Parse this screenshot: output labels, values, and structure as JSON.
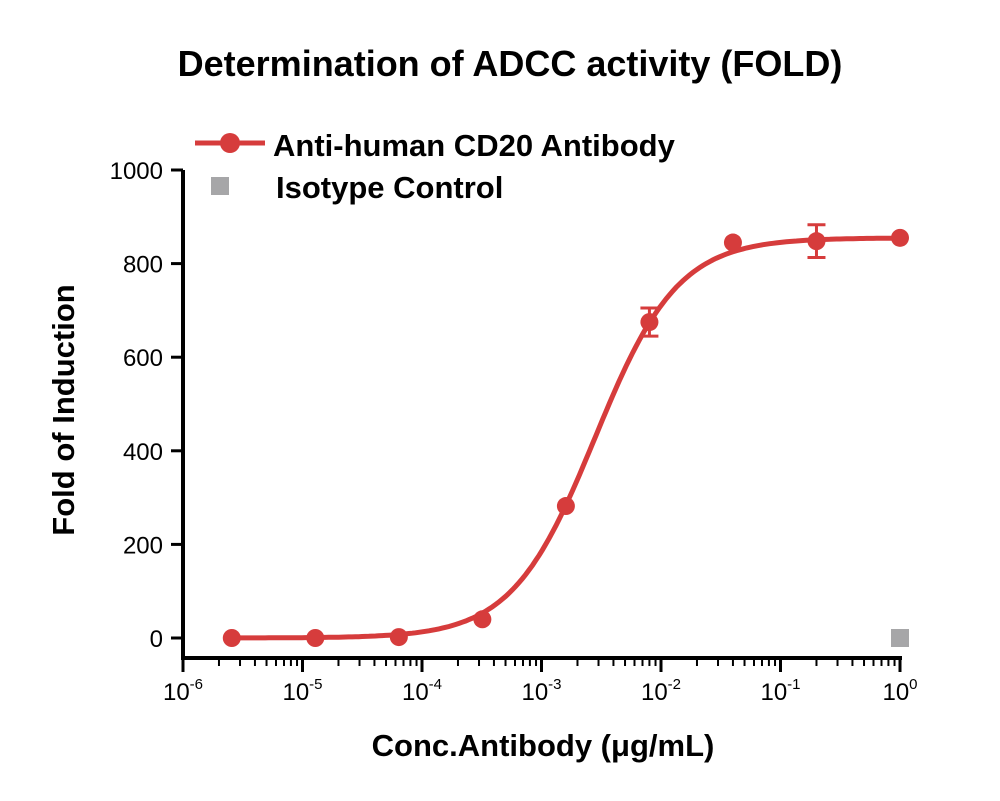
{
  "chart_data": {
    "type": "scatter",
    "title": "Determination of ADCC activity (FOLD)",
    "xlabel": "Conc.Antibody (μg/mL)",
    "ylabel": "Fold of Induction",
    "x_scale": "log",
    "xlim": [
      1e-06,
      1
    ],
    "ylim": [
      0,
      1000
    ],
    "y_ticks": [
      0,
      200,
      400,
      600,
      800,
      1000
    ],
    "x_tick_labels": [
      {
        "base": "10",
        "exp": "-6"
      },
      {
        "base": "10",
        "exp": "-5"
      },
      {
        "base": "10",
        "exp": "-4"
      },
      {
        "base": "10",
        "exp": "-3"
      },
      {
        "base": "10",
        "exp": "-2"
      },
      {
        "base": "10",
        "exp": "-1"
      },
      {
        "base": "10",
        "exp": "0"
      }
    ],
    "grid": false,
    "legend_position": "top-left",
    "series": [
      {
        "name": "Anti-human CD20 Antibody",
        "color": "#d63c3c",
        "marker": "circle",
        "fit": "sigmoidal-4pl",
        "x": [
          2.56e-06,
          1.28e-05,
          6.4e-05,
          0.00032,
          0.0016,
          0.008,
          0.04,
          0.2,
          1
        ],
        "y": [
          0,
          0,
          2,
          40,
          282,
          675,
          845,
          848,
          855
        ],
        "error": [
          3,
          3,
          3,
          5,
          8,
          30,
          10,
          35,
          6
        ]
      },
      {
        "name": "Isotype Control",
        "color": "#a6a6a8",
        "marker": "square",
        "x": [
          1
        ],
        "y": [
          0
        ],
        "error": [
          0
        ]
      }
    ]
  }
}
